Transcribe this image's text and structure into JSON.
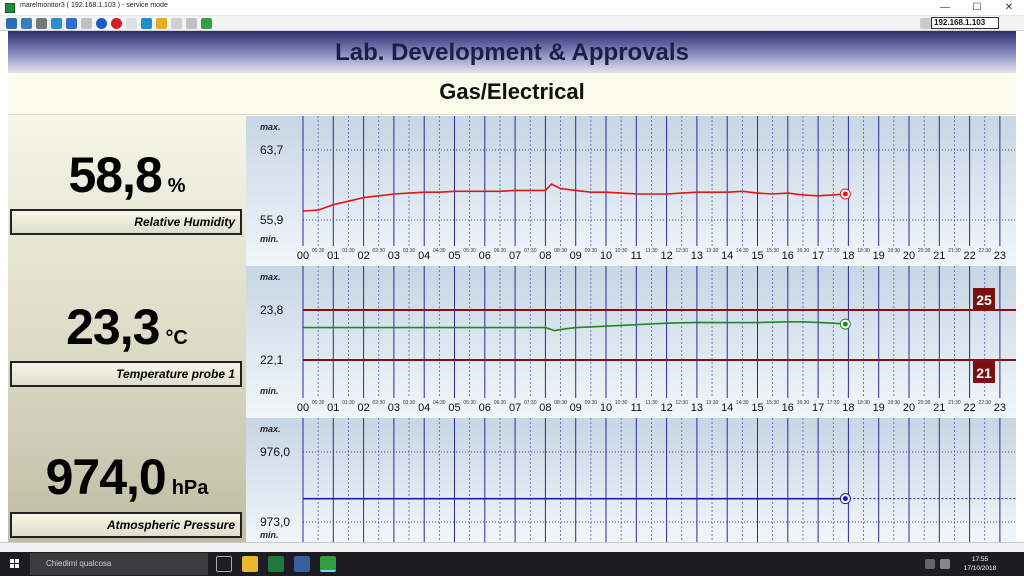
{
  "window": {
    "title": "marelmonitor3 ( 192.168.1.103 ) - service mode",
    "minimize": "—",
    "maximize": "☐",
    "close": "✕"
  },
  "toolbar": {
    "ip_value": "192.168.1.103"
  },
  "header": {
    "title": "Lab. Development & Approvals",
    "subtitle": "Gas/Electrical"
  },
  "readings": [
    {
      "value": "58,8",
      "unit": "%",
      "label": "Relative Humidity"
    },
    {
      "value": "23,3",
      "unit": "°C",
      "label": "Temperature probe 1"
    },
    {
      "value": "974,0",
      "unit": "hPa",
      "label": "Atmospheric Pressure"
    }
  ],
  "axis": {
    "hours": [
      "00",
      "01",
      "02",
      "03",
      "04",
      "05",
      "06",
      "07",
      "08",
      "09",
      "10",
      "11",
      "12",
      "13",
      "14",
      "15",
      "16",
      "17",
      "18",
      "19",
      "20",
      "21",
      "22",
      "23"
    ],
    "half_hours": [
      "00:30",
      "01:30",
      "02:30",
      "03:30",
      "04:30",
      "05:30",
      "06:30",
      "07:30",
      "08:30",
      "09:30",
      "10:30",
      "11:30",
      "12:30",
      "13:30",
      "14:30",
      "15:30",
      "16:30",
      "17:30",
      "18:30",
      "19:30",
      "20:30",
      "21:30",
      "22:30"
    ]
  },
  "chart_data": [
    {
      "type": "line",
      "name": "humidity",
      "max_label": "max.",
      "min_label": "min.",
      "ymax_label": "63,7",
      "ymin_label": "55,9",
      "ylim": [
        55.9,
        63.7
      ],
      "color": "#e01818",
      "x_hours": [
        0,
        0.5,
        1,
        1.5,
        2,
        2.5,
        3,
        3.5,
        4,
        4.5,
        5,
        5.5,
        6,
        6.5,
        7,
        7.5,
        8,
        8.2,
        8.5,
        9,
        9.5,
        10,
        10.5,
        11,
        11.5,
        12,
        12.5,
        13,
        13.5,
        14,
        14.5,
        15,
        15.5,
        16,
        16.5,
        17,
        17.5,
        17.9
      ],
      "values": [
        56.9,
        57.0,
        57.6,
        58.0,
        58.4,
        58.6,
        58.8,
        58.9,
        59.0,
        59.0,
        59.1,
        59.1,
        59.1,
        59.1,
        59.2,
        59.2,
        59.2,
        59.9,
        59.4,
        59.2,
        59.0,
        59.0,
        58.9,
        58.8,
        58.8,
        58.8,
        58.9,
        59.0,
        59.0,
        59.0,
        59.1,
        58.9,
        58.8,
        58.9,
        58.7,
        58.6,
        58.7,
        58.8
      ]
    },
    {
      "type": "line",
      "name": "temperature",
      "max_label": "max.",
      "min_label": "min.",
      "ymax_label": "23,8",
      "ymin_label": "22,1",
      "ylim": [
        22.1,
        23.8
      ],
      "upper_alarm": "25",
      "lower_alarm": "21",
      "color": "#1f8a1f",
      "x_hours": [
        0,
        1,
        2,
        3,
        4,
        5,
        6,
        7,
        7.5,
        8,
        8.3,
        8.6,
        9,
        10,
        11,
        12,
        13,
        14,
        15,
        16,
        16.5,
        17,
        17.5,
        17.9
      ],
      "values": [
        23.2,
        23.2,
        23.2,
        23.2,
        23.2,
        23.2,
        23.2,
        23.2,
        23.2,
        23.2,
        23.1,
        23.15,
        23.2,
        23.25,
        23.3,
        23.35,
        23.38,
        23.37,
        23.37,
        23.4,
        23.4,
        23.38,
        23.35,
        23.32
      ]
    },
    {
      "type": "line",
      "name": "pressure",
      "max_label": "max.",
      "min_label": "min.",
      "ymax_label": "976,0",
      "ymin_label": "973,0",
      "ylim": [
        973.0,
        976.0
      ],
      "color": "#1a1ab0",
      "x_hours": [
        0,
        17.9
      ],
      "values": [
        974.0,
        974.0
      ]
    }
  ],
  "taskbar": {
    "search_placeholder": "Chiedimi qualcosa",
    "time": "17:55",
    "date": "17/10/2018"
  }
}
